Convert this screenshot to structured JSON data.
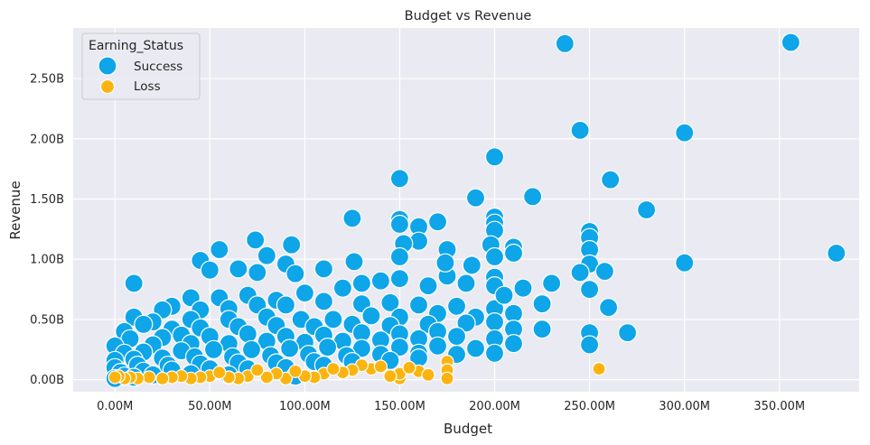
{
  "chart_data": {
    "type": "scatter",
    "title": "Budget vs Revenue",
    "xlabel": "Budget",
    "ylabel": "Revenue",
    "x_unit": "M",
    "y_unit": "B",
    "xlim": [
      -22,
      392
    ],
    "ylim": [
      -0.1,
      2.92
    ],
    "x_ticks": [
      0,
      50,
      100,
      150,
      200,
      250,
      300,
      350
    ],
    "y_ticks": [
      0.0,
      0.5,
      1.0,
      1.5,
      2.0,
      2.5
    ],
    "x_tick_labels": [
      "0.00M",
      "50.00M",
      "100.00M",
      "150.00M",
      "200.00M",
      "250.00M",
      "300.00M",
      "350.00M"
    ],
    "y_tick_labels": [
      "0.00B",
      "0.50B",
      "1.00B",
      "1.50B",
      "2.00B",
      "2.50B"
    ],
    "grid": true,
    "background": "#eaeaf2",
    "legend": {
      "title": "Earning_Status",
      "position": "top-left",
      "entries": [
        "Success",
        "Loss"
      ]
    },
    "series": [
      {
        "name": "Success",
        "color": "#0ea5e9",
        "points": [
          [
            237,
            2.79
          ],
          [
            356,
            2.8
          ],
          [
            245,
            2.07
          ],
          [
            300,
            2.05
          ],
          [
            200,
            1.85
          ],
          [
            150,
            1.67
          ],
          [
            261,
            1.66
          ],
          [
            220,
            1.52
          ],
          [
            190,
            1.51
          ],
          [
            280,
            1.41
          ],
          [
            125,
            1.34
          ],
          [
            150,
            1.33
          ],
          [
            160,
            1.27
          ],
          [
            170,
            1.31
          ],
          [
            200,
            1.35
          ],
          [
            200,
            1.3
          ],
          [
            250,
            1.23
          ],
          [
            200,
            1.24
          ],
          [
            250,
            1.18
          ],
          [
            160,
            1.15
          ],
          [
            152,
            1.13
          ],
          [
            198,
            1.12
          ],
          [
            210,
            1.1
          ],
          [
            175,
            1.08
          ],
          [
            250,
            1.08
          ],
          [
            380,
            1.05
          ],
          [
            200,
            1.02
          ],
          [
            150,
            1.02
          ],
          [
            55,
            1.08
          ],
          [
            93,
            1.12
          ],
          [
            74,
            1.16
          ],
          [
            80,
            1.03
          ],
          [
            45,
            0.99
          ],
          [
            90,
            0.96
          ],
          [
            300,
            0.97
          ],
          [
            250,
            0.96
          ],
          [
            245,
            0.89
          ],
          [
            258,
            0.9
          ],
          [
            200,
            0.85
          ],
          [
            175,
            0.86
          ],
          [
            150,
            0.84
          ],
          [
            126,
            0.98
          ],
          [
            110,
            0.92
          ],
          [
            95,
            0.88
          ],
          [
            75,
            0.89
          ],
          [
            50,
            0.91
          ],
          [
            10,
            0.8
          ],
          [
            65,
            0.92
          ],
          [
            230,
            0.8
          ],
          [
            215,
            0.76
          ],
          [
            250,
            0.75
          ],
          [
            200,
            0.78
          ],
          [
            185,
            0.8
          ],
          [
            165,
            0.78
          ],
          [
            140,
            0.82
          ],
          [
            130,
            0.8
          ],
          [
            120,
            0.76
          ],
          [
            100,
            0.72
          ],
          [
            85,
            0.66
          ],
          [
            70,
            0.7
          ],
          [
            55,
            0.68
          ],
          [
            40,
            0.68
          ],
          [
            30,
            0.61
          ],
          [
            225,
            0.64
          ],
          [
            260,
            0.6
          ],
          [
            225,
            0.63
          ],
          [
            200,
            0.59
          ],
          [
            180,
            0.61
          ],
          [
            160,
            0.62
          ],
          [
            145,
            0.64
          ],
          [
            130,
            0.63
          ],
          [
            110,
            0.65
          ],
          [
            90,
            0.62
          ],
          [
            75,
            0.62
          ],
          [
            60,
            0.59
          ],
          [
            45,
            0.58
          ],
          [
            25,
            0.58
          ],
          [
            10,
            0.52
          ],
          [
            210,
            0.55
          ],
          [
            190,
            0.52
          ],
          [
            170,
            0.55
          ],
          [
            150,
            0.52
          ],
          [
            135,
            0.53
          ],
          [
            115,
            0.5
          ],
          [
            98,
            0.5
          ],
          [
            80,
            0.52
          ],
          [
            60,
            0.5
          ],
          [
            40,
            0.5
          ],
          [
            20,
            0.48
          ],
          [
            15,
            0.46
          ],
          [
            200,
            0.48
          ],
          [
            185,
            0.47
          ],
          [
            165,
            0.46
          ],
          [
            145,
            0.45
          ],
          [
            125,
            0.46
          ],
          [
            105,
            0.44
          ],
          [
            85,
            0.45
          ],
          [
            65,
            0.44
          ],
          [
            45,
            0.43
          ],
          [
            30,
            0.42
          ],
          [
            5,
            0.4
          ],
          [
            210,
            0.42
          ],
          [
            225,
            0.42
          ],
          [
            170,
            0.4
          ],
          [
            150,
            0.38
          ],
          [
            130,
            0.39
          ],
          [
            110,
            0.37
          ],
          [
            90,
            0.36
          ],
          [
            70,
            0.38
          ],
          [
            50,
            0.36
          ],
          [
            35,
            0.37
          ],
          [
            25,
            0.35
          ],
          [
            8,
            0.34
          ],
          [
            270,
            0.39
          ],
          [
            250,
            0.39
          ],
          [
            200,
            0.34
          ],
          [
            180,
            0.36
          ],
          [
            160,
            0.34
          ],
          [
            140,
            0.33
          ],
          [
            120,
            0.32
          ],
          [
            100,
            0.31
          ],
          [
            80,
            0.32
          ],
          [
            60,
            0.3
          ],
          [
            40,
            0.3
          ],
          [
            20,
            0.29
          ],
          [
            0,
            0.28
          ],
          [
            250,
            0.29
          ],
          [
            210,
            0.3
          ],
          [
            190,
            0.26
          ],
          [
            170,
            0.28
          ],
          [
            150,
            0.27
          ],
          [
            130,
            0.26
          ],
          [
            112,
            0.27
          ],
          [
            92,
            0.26
          ],
          [
            72,
            0.25
          ],
          [
            52,
            0.25
          ],
          [
            35,
            0.24
          ],
          [
            15,
            0.23
          ],
          [
            5,
            0.22
          ],
          [
            200,
            0.22
          ],
          [
            180,
            0.21
          ],
          [
            160,
            0.22
          ],
          [
            140,
            0.21
          ],
          [
            122,
            0.2
          ],
          [
            102,
            0.21
          ],
          [
            82,
            0.2
          ],
          [
            62,
            0.19
          ],
          [
            42,
            0.19
          ],
          [
            25,
            0.18
          ],
          [
            10,
            0.17
          ],
          [
            0,
            0.16
          ],
          [
            160,
            0.18
          ],
          [
            145,
            0.16
          ],
          [
            125,
            0.15
          ],
          [
            105,
            0.15
          ],
          [
            85,
            0.14
          ],
          [
            65,
            0.14
          ],
          [
            45,
            0.13
          ],
          [
            28,
            0.12
          ],
          [
            12,
            0.12
          ],
          [
            0,
            0.1
          ],
          [
            110,
            0.12
          ],
          [
            90,
            0.1
          ],
          [
            70,
            0.09
          ],
          [
            50,
            0.09
          ],
          [
            30,
            0.08
          ],
          [
            15,
            0.07
          ],
          [
            3,
            0.06
          ],
          [
            40,
            0.05
          ],
          [
            20,
            0.04
          ],
          [
            5,
            0.03
          ],
          [
            10,
            0.02
          ],
          [
            0,
            0.01
          ],
          [
            95,
            0.03
          ],
          [
            60,
            0.04
          ],
          [
            150,
            1.29
          ],
          [
            210,
            1.05
          ],
          [
            174,
            0.97
          ],
          [
            205,
            0.7
          ],
          [
            188,
            0.95
          ]
        ]
      },
      {
        "name": "Loss",
        "color": "#fbb40f",
        "points": [
          [
            255,
            0.09
          ],
          [
            175,
            0.15
          ],
          [
            175,
            0.08
          ],
          [
            175,
            0.01
          ],
          [
            150,
            0.01
          ],
          [
            150,
            0.05
          ],
          [
            160,
            0.07
          ],
          [
            145,
            0.03
          ],
          [
            135,
            0.09
          ],
          [
            130,
            0.12
          ],
          [
            125,
            0.08
          ],
          [
            120,
            0.06
          ],
          [
            110,
            0.05
          ],
          [
            105,
            0.02
          ],
          [
            100,
            0.03
          ],
          [
            90,
            0.01
          ],
          [
            85,
            0.05
          ],
          [
            80,
            0.02
          ],
          [
            70,
            0.03
          ],
          [
            65,
            0.01
          ],
          [
            60,
            0.02
          ],
          [
            50,
            0.03
          ],
          [
            45,
            0.02
          ],
          [
            40,
            0.01
          ],
          [
            35,
            0.03
          ],
          [
            30,
            0.02
          ],
          [
            25,
            0.01
          ],
          [
            18,
            0.02
          ],
          [
            12,
            0.01
          ],
          [
            8,
            0.02
          ],
          [
            5,
            0.01
          ],
          [
            2,
            0.03
          ],
          [
            0,
            0.02
          ],
          [
            55,
            0.06
          ],
          [
            75,
            0.08
          ],
          [
            95,
            0.07
          ],
          [
            115,
            0.09
          ],
          [
            140,
            0.11
          ],
          [
            155,
            0.1
          ],
          [
            165,
            0.04
          ]
        ]
      }
    ]
  }
}
